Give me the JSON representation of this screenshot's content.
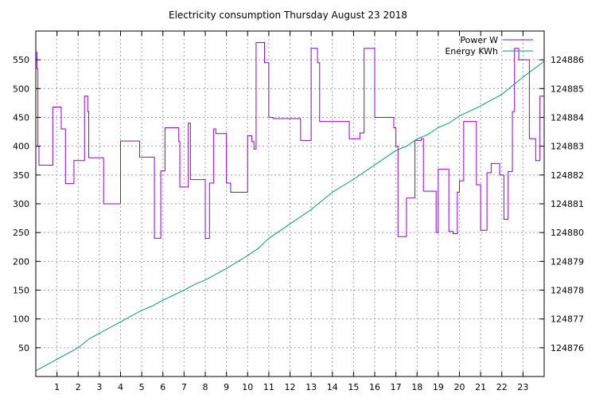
{
  "chart_data": {
    "type": "line",
    "title": "Electricity consumption Thursday August 23 2018",
    "xlabel": "",
    "ylabel": "",
    "xlim": [
      0,
      24
    ],
    "ylim": [
      0,
      600
    ],
    "y2lim": [
      124875,
      124887
    ],
    "x_ticks": [
      1,
      2,
      3,
      4,
      5,
      6,
      7,
      8,
      9,
      10,
      11,
      12,
      13,
      14,
      15,
      16,
      17,
      18,
      19,
      20,
      21,
      22,
      23
    ],
    "y_ticks": [
      50,
      100,
      150,
      200,
      250,
      300,
      350,
      400,
      450,
      500,
      550
    ],
    "y2_ticks": [
      124876,
      124877,
      124878,
      124879,
      124880,
      124881,
      124882,
      124883,
      124884,
      124885,
      124886
    ],
    "grid": true,
    "legend_position": "top-right",
    "series": [
      {
        "name": "Power W",
        "axis": "y1",
        "color": "#9400d3",
        "style": "step",
        "x": [
          0,
          0.05,
          0.1,
          0.15,
          0.8,
          1.2,
          1.4,
          1.5,
          1.8,
          2.0,
          2.3,
          2.45,
          2.5,
          3.2,
          3.3,
          4.0,
          4.3,
          4.9,
          5.0,
          5.6,
          5.8,
          5.9,
          6.0,
          6.1,
          6.75,
          6.8,
          7.0,
          7.2,
          7.3,
          7.6,
          8.0,
          8.1,
          8.2,
          8.4,
          8.5,
          9.0,
          9.2,
          10.0,
          10.2,
          10.3,
          10.4,
          10.8,
          11.0,
          11.2,
          11.5,
          12.0,
          12.5,
          12.9,
          13.0,
          13.3,
          13.4,
          14.0,
          14.5,
          14.8,
          15.2,
          15.3,
          15.5,
          16.0,
          16.6,
          16.9,
          17.0,
          17.1,
          17.3,
          17.5,
          17.7,
          17.9,
          18.2,
          18.3,
          18.5,
          18.9,
          19.0,
          19.2,
          19.5,
          19.7,
          19.9,
          20.0,
          20.2,
          20.5,
          20.8,
          20.9,
          21.0,
          21.2,
          21.3,
          21.5,
          21.7,
          21.9,
          22.1,
          22.3,
          22.5,
          22.6,
          22.8,
          23.0,
          23.3,
          23.4,
          23.6,
          23.8,
          24.0
        ],
        "y": [
          563,
          535,
          400,
          367,
          468,
          430,
          335,
          335,
          375,
          375,
          487,
          460,
          380,
          300,
          300,
          409,
          409,
          381,
          381,
          240,
          240,
          357,
          357,
          432,
          408,
          329,
          329,
          440,
          342,
          342,
          240,
          240,
          336,
          430,
          422,
          336,
          320,
          418,
          408,
          395,
          580,
          545,
          450,
          448,
          448,
          448,
          410,
          410,
          570,
          545,
          443,
          443,
          443,
          413,
          413,
          423,
          570,
          450,
          450,
          432,
          400,
          243,
          243,
          310,
          310,
          410,
          413,
          322,
          322,
          250,
          360,
          360,
          252,
          248,
          320,
          340,
          443,
          443,
          333,
          333,
          254,
          254,
          354,
          370,
          370,
          350,
          273,
          356,
          460,
          570,
          550,
          550,
          413,
          413,
          375,
          487,
          487
        ]
      },
      {
        "name": "Energy KWh",
        "axis": "y2",
        "color": "#009e73",
        "style": "line",
        "x": [
          0,
          0.5,
          1,
          2,
          2.5,
          3,
          4,
          5,
          5.5,
          6,
          7,
          7.5,
          8,
          9,
          10,
          10.5,
          11,
          12,
          13,
          13.5,
          14,
          15,
          15.5,
          16,
          17,
          17.5,
          18,
          18.5,
          19,
          19.5,
          20,
          21,
          22,
          23,
          24
        ],
        "y": [
          124875.2,
          124875.4,
          124875.6,
          124876.0,
          124876.3,
          124876.5,
          124876.9,
          124877.3,
          124877.45,
          124877.65,
          124878.0,
          124878.2,
          124878.35,
          124878.75,
          124879.2,
          124879.45,
          124879.8,
          124880.3,
          124880.8,
          124881.1,
          124881.4,
          124881.85,
          124882.1,
          124882.35,
          124882.85,
          124883.0,
          124883.25,
          124883.4,
          124883.65,
          124883.8,
          124884.05,
          124884.4,
          124884.8,
          124885.4,
          124885.95
        ]
      }
    ]
  }
}
